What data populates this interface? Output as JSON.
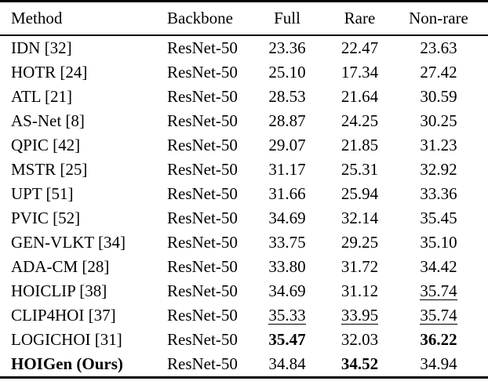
{
  "table": {
    "header": {
      "method": "Method",
      "backbone": "Backbone",
      "full": "Full",
      "rare": "Rare",
      "nonrare": "Non-rare"
    },
    "rows": [
      {
        "method": "IDN [32]",
        "backbone": "ResNet-50",
        "full": "23.36",
        "rare": "22.47",
        "nonrare": "23.63"
      },
      {
        "method": "HOTR [24]",
        "backbone": "ResNet-50",
        "full": "25.10",
        "rare": "17.34",
        "nonrare": "27.42"
      },
      {
        "method": "ATL [21]",
        "backbone": "ResNet-50",
        "full": "28.53",
        "rare": "21.64",
        "nonrare": "30.59"
      },
      {
        "method": "AS-Net [8]",
        "backbone": "ResNet-50",
        "full": "28.87",
        "rare": "24.25",
        "nonrare": "30.25"
      },
      {
        "method": "QPIC [42]",
        "backbone": "ResNet-50",
        "full": "29.07",
        "rare": "21.85",
        "nonrare": "31.23"
      },
      {
        "method": "MSTR [25]",
        "backbone": "ResNet-50",
        "full": "31.17",
        "rare": "25.31",
        "nonrare": "32.92"
      },
      {
        "method": "UPT [51]",
        "backbone": "ResNet-50",
        "full": "31.66",
        "rare": "25.94",
        "nonrare": "33.36"
      },
      {
        "method": "PVIC [52]",
        "backbone": "ResNet-50",
        "full": "34.69",
        "rare": "32.14",
        "nonrare": "35.45"
      },
      {
        "method": "GEN-VLKT [34]",
        "backbone": "ResNet-50",
        "full": "33.75",
        "rare": "29.25",
        "nonrare": "35.10"
      },
      {
        "method": "ADA-CM [28]",
        "backbone": "ResNet-50",
        "full": "33.80",
        "rare": "31.72",
        "nonrare": "34.42"
      },
      {
        "method": "HOICLIP [38]",
        "backbone": "ResNet-50",
        "full": "34.69",
        "rare": "31.12",
        "nonrare": "35.74",
        "nonrare_style": "underline"
      },
      {
        "method": "CLIP4HOI [37]",
        "backbone": "ResNet-50",
        "full": "35.33",
        "full_style": "underline",
        "rare": "33.95",
        "rare_style": "underline",
        "nonrare": "35.74",
        "nonrare_style": "underline"
      },
      {
        "method": "LOGICHOI [31]",
        "backbone": "ResNet-50",
        "full": "35.47",
        "full_style": "bold",
        "rare": "32.03",
        "nonrare": "36.22",
        "nonrare_style": "bold"
      },
      {
        "method": "HOIGen (Ours)",
        "method_style": "bold",
        "backbone": "ResNet-50",
        "full": "34.84",
        "rare": "34.52",
        "rare_style": "bold",
        "nonrare": "34.94"
      }
    ]
  }
}
